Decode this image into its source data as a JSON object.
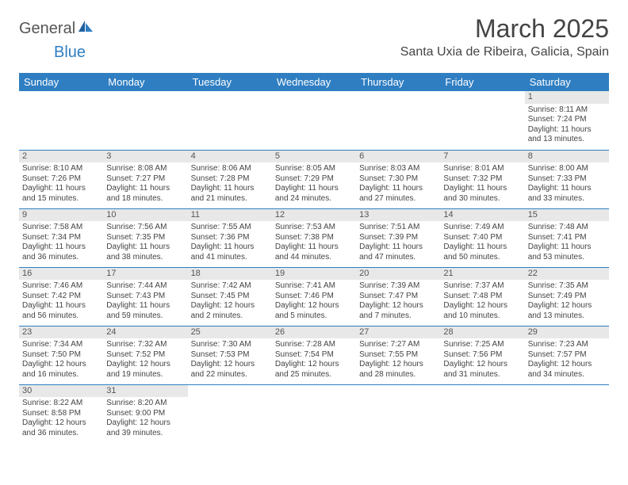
{
  "brand": {
    "part1": "General",
    "part2": "Blue"
  },
  "title": "March 2025",
  "location": "Santa Uxia de Ribeira, Galicia, Spain",
  "colors": {
    "header_bg": "#2f7ec2",
    "header_text": "#ffffff",
    "daynum_bg": "#e8e8e8",
    "border": "#2f7ec2",
    "body_text": "#444444",
    "logo_accent": "#2f7ec2"
  },
  "daysOfWeek": [
    "Sunday",
    "Monday",
    "Tuesday",
    "Wednesday",
    "Thursday",
    "Friday",
    "Saturday"
  ],
  "weeks": [
    [
      null,
      null,
      null,
      null,
      null,
      null,
      {
        "n": "1",
        "sr": "Sunrise: 8:11 AM",
        "ss": "Sunset: 7:24 PM",
        "d1": "Daylight: 11 hours",
        "d2": "and 13 minutes."
      }
    ],
    [
      {
        "n": "2",
        "sr": "Sunrise: 8:10 AM",
        "ss": "Sunset: 7:26 PM",
        "d1": "Daylight: 11 hours",
        "d2": "and 15 minutes."
      },
      {
        "n": "3",
        "sr": "Sunrise: 8:08 AM",
        "ss": "Sunset: 7:27 PM",
        "d1": "Daylight: 11 hours",
        "d2": "and 18 minutes."
      },
      {
        "n": "4",
        "sr": "Sunrise: 8:06 AM",
        "ss": "Sunset: 7:28 PM",
        "d1": "Daylight: 11 hours",
        "d2": "and 21 minutes."
      },
      {
        "n": "5",
        "sr": "Sunrise: 8:05 AM",
        "ss": "Sunset: 7:29 PM",
        "d1": "Daylight: 11 hours",
        "d2": "and 24 minutes."
      },
      {
        "n": "6",
        "sr": "Sunrise: 8:03 AM",
        "ss": "Sunset: 7:30 PM",
        "d1": "Daylight: 11 hours",
        "d2": "and 27 minutes."
      },
      {
        "n": "7",
        "sr": "Sunrise: 8:01 AM",
        "ss": "Sunset: 7:32 PM",
        "d1": "Daylight: 11 hours",
        "d2": "and 30 minutes."
      },
      {
        "n": "8",
        "sr": "Sunrise: 8:00 AM",
        "ss": "Sunset: 7:33 PM",
        "d1": "Daylight: 11 hours",
        "d2": "and 33 minutes."
      }
    ],
    [
      {
        "n": "9",
        "sr": "Sunrise: 7:58 AM",
        "ss": "Sunset: 7:34 PM",
        "d1": "Daylight: 11 hours",
        "d2": "and 36 minutes."
      },
      {
        "n": "10",
        "sr": "Sunrise: 7:56 AM",
        "ss": "Sunset: 7:35 PM",
        "d1": "Daylight: 11 hours",
        "d2": "and 38 minutes."
      },
      {
        "n": "11",
        "sr": "Sunrise: 7:55 AM",
        "ss": "Sunset: 7:36 PM",
        "d1": "Daylight: 11 hours",
        "d2": "and 41 minutes."
      },
      {
        "n": "12",
        "sr": "Sunrise: 7:53 AM",
        "ss": "Sunset: 7:38 PM",
        "d1": "Daylight: 11 hours",
        "d2": "and 44 minutes."
      },
      {
        "n": "13",
        "sr": "Sunrise: 7:51 AM",
        "ss": "Sunset: 7:39 PM",
        "d1": "Daylight: 11 hours",
        "d2": "and 47 minutes."
      },
      {
        "n": "14",
        "sr": "Sunrise: 7:49 AM",
        "ss": "Sunset: 7:40 PM",
        "d1": "Daylight: 11 hours",
        "d2": "and 50 minutes."
      },
      {
        "n": "15",
        "sr": "Sunrise: 7:48 AM",
        "ss": "Sunset: 7:41 PM",
        "d1": "Daylight: 11 hours",
        "d2": "and 53 minutes."
      }
    ],
    [
      {
        "n": "16",
        "sr": "Sunrise: 7:46 AM",
        "ss": "Sunset: 7:42 PM",
        "d1": "Daylight: 11 hours",
        "d2": "and 56 minutes."
      },
      {
        "n": "17",
        "sr": "Sunrise: 7:44 AM",
        "ss": "Sunset: 7:43 PM",
        "d1": "Daylight: 11 hours",
        "d2": "and 59 minutes."
      },
      {
        "n": "18",
        "sr": "Sunrise: 7:42 AM",
        "ss": "Sunset: 7:45 PM",
        "d1": "Daylight: 12 hours",
        "d2": "and 2 minutes."
      },
      {
        "n": "19",
        "sr": "Sunrise: 7:41 AM",
        "ss": "Sunset: 7:46 PM",
        "d1": "Daylight: 12 hours",
        "d2": "and 5 minutes."
      },
      {
        "n": "20",
        "sr": "Sunrise: 7:39 AM",
        "ss": "Sunset: 7:47 PM",
        "d1": "Daylight: 12 hours",
        "d2": "and 7 minutes."
      },
      {
        "n": "21",
        "sr": "Sunrise: 7:37 AM",
        "ss": "Sunset: 7:48 PM",
        "d1": "Daylight: 12 hours",
        "d2": "and 10 minutes."
      },
      {
        "n": "22",
        "sr": "Sunrise: 7:35 AM",
        "ss": "Sunset: 7:49 PM",
        "d1": "Daylight: 12 hours",
        "d2": "and 13 minutes."
      }
    ],
    [
      {
        "n": "23",
        "sr": "Sunrise: 7:34 AM",
        "ss": "Sunset: 7:50 PM",
        "d1": "Daylight: 12 hours",
        "d2": "and 16 minutes."
      },
      {
        "n": "24",
        "sr": "Sunrise: 7:32 AM",
        "ss": "Sunset: 7:52 PM",
        "d1": "Daylight: 12 hours",
        "d2": "and 19 minutes."
      },
      {
        "n": "25",
        "sr": "Sunrise: 7:30 AM",
        "ss": "Sunset: 7:53 PM",
        "d1": "Daylight: 12 hours",
        "d2": "and 22 minutes."
      },
      {
        "n": "26",
        "sr": "Sunrise: 7:28 AM",
        "ss": "Sunset: 7:54 PM",
        "d1": "Daylight: 12 hours",
        "d2": "and 25 minutes."
      },
      {
        "n": "27",
        "sr": "Sunrise: 7:27 AM",
        "ss": "Sunset: 7:55 PM",
        "d1": "Daylight: 12 hours",
        "d2": "and 28 minutes."
      },
      {
        "n": "28",
        "sr": "Sunrise: 7:25 AM",
        "ss": "Sunset: 7:56 PM",
        "d1": "Daylight: 12 hours",
        "d2": "and 31 minutes."
      },
      {
        "n": "29",
        "sr": "Sunrise: 7:23 AM",
        "ss": "Sunset: 7:57 PM",
        "d1": "Daylight: 12 hours",
        "d2": "and 34 minutes."
      }
    ],
    [
      {
        "n": "30",
        "sr": "Sunrise: 8:22 AM",
        "ss": "Sunset: 8:58 PM",
        "d1": "Daylight: 12 hours",
        "d2": "and 36 minutes."
      },
      {
        "n": "31",
        "sr": "Sunrise: 8:20 AM",
        "ss": "Sunset: 9:00 PM",
        "d1": "Daylight: 12 hours",
        "d2": "and 39 minutes."
      },
      null,
      null,
      null,
      null,
      null
    ]
  ]
}
